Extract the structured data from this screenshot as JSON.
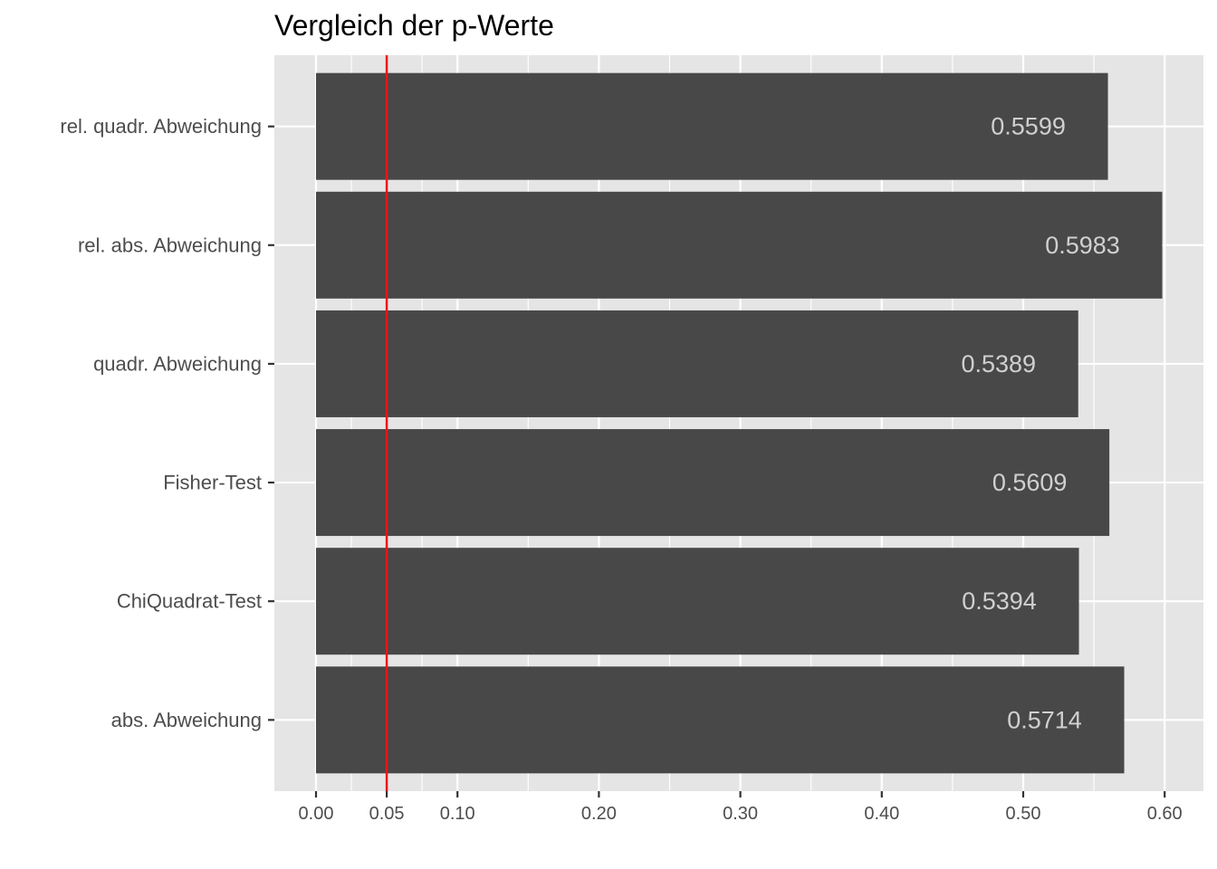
{
  "chart_data": {
    "type": "bar",
    "orientation": "horizontal",
    "title": "Vergleich der p-Werte",
    "xlabel": "",
    "ylabel": "",
    "categories": [
      "abs. Abweichung",
      "ChiQuadrat-Test",
      "Fisher-Test",
      "quadr. Abweichung",
      "rel. abs. Abweichung",
      "rel. quadr. Abweichung"
    ],
    "values": [
      0.5714,
      0.5394,
      0.5609,
      0.5389,
      0.5983,
      0.5599
    ],
    "data_labels": [
      "0.5714",
      "0.5394",
      "0.5609",
      "0.5389",
      "0.5983",
      "0.5599"
    ],
    "xlim": [
      -0.0149,
      0.6132
    ],
    "x_ticks": [
      0.0,
      0.05,
      0.1,
      0.2,
      0.3,
      0.4,
      0.5,
      0.6
    ],
    "x_tick_labels": [
      "0.00",
      "0.05",
      "0.10",
      "0.20",
      "0.30",
      "0.40",
      "0.50",
      "0.60"
    ],
    "x_minor_ticks": [
      0.025,
      0.075,
      0.15,
      0.25,
      0.35,
      0.45,
      0.55
    ],
    "reference_line": {
      "x": 0.05,
      "color": "#e8161a"
    },
    "colors": {
      "bar": "#484848",
      "panel": "#e5e5e5",
      "grid": "#ffffff",
      "label": "#d0d0d0"
    },
    "grid": true,
    "legend": "none"
  }
}
